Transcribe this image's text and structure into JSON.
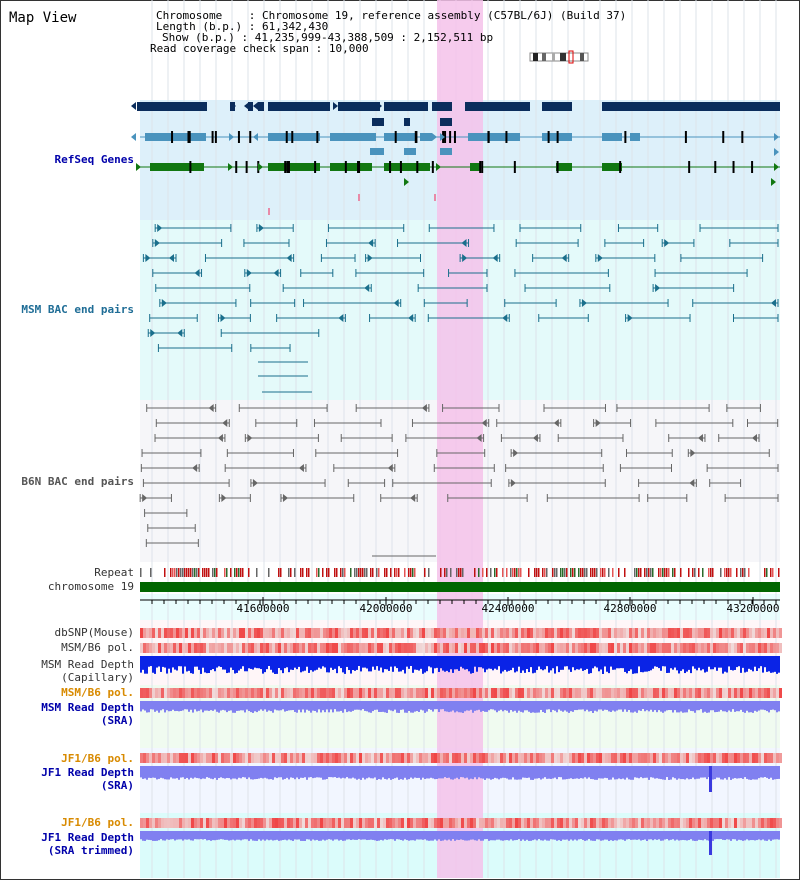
{
  "header": {
    "title": "Map View",
    "chromosome_label": "Chromosome",
    "chromosome_value": "Chromosome 19, reference assembly (C57BL/6J) (Build 37)",
    "length_label": "Length (b.p.)",
    "length_value": "61,342,430",
    "show_label": "Show (b.p.)",
    "show_value": "41,235,999-43,388,509 : 2,152,511 bp",
    "span_label": "Read coverage check span",
    "span_value": "10,000"
  },
  "tracks": {
    "refseq": "RefSeq Genes",
    "msm_bac": "MSM BAC end pairs",
    "b6n_bac": "B6N BAC end pairs",
    "repeat": "Repeat",
    "chromosome": "chromosome 19",
    "dbsnp": "dbSNP(Mouse)",
    "msm_b6_pol_1": "MSM/B6 pol.",
    "msm_read_depth_cap_1": "MSM Read Depth",
    "msm_read_depth_cap_2": "(Capillary)",
    "msm_b6_pol_2": "MSM/B6 pol.",
    "msm_read_depth_sra_1": "MSM Read Depth",
    "msm_read_depth_sra_2": "(SRA)",
    "jf1_b6_pol_1": "JF1/B6 pol.",
    "jf1_read_depth_sra_1": "JF1 Read Depth",
    "jf1_read_depth_sra_2": "(SRA)",
    "jf1_b6_pol_2": "JF1/B6 pol.",
    "jf1_read_depth_trim_1": "JF1 Read Depth",
    "jf1_read_depth_trim_2": "(SRA trimmed)"
  },
  "axis": {
    "ticks": [
      "41600000",
      "42000000",
      "42400000",
      "42800000",
      "43200000"
    ]
  },
  "colors": {
    "gene_dark": "#0b2d5c",
    "gene_mid": "#4a93bd",
    "gene_green": "#117711",
    "bac_msm": "#1a6f8c",
    "bac_b6n": "#666666",
    "highlight": "#f5c2ea",
    "chromosome_bar": "#006600",
    "depth_capillary": "#0a23e6",
    "depth_sra": "#8080f0"
  }
}
